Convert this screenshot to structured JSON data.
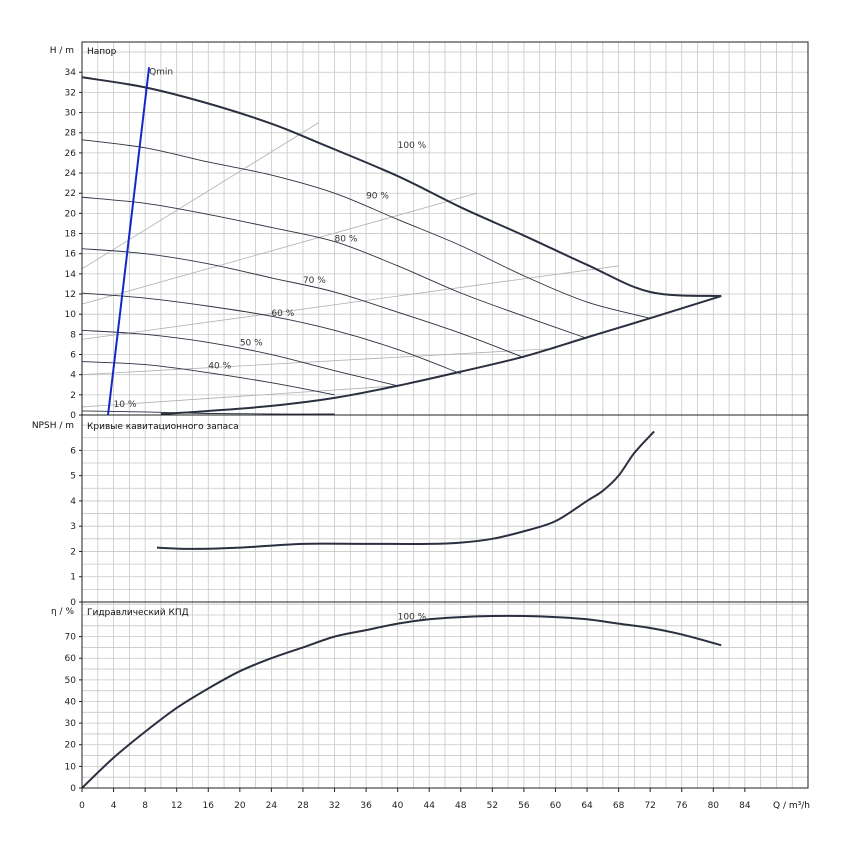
{
  "chart_data": [
    {
      "type": "line",
      "panel": "head",
      "title": "Напор",
      "ylabel": "H / m",
      "xlabel": "Q / m³/h",
      "xlim": [
        0,
        92
      ],
      "ylim": [
        0,
        37
      ],
      "grid": true,
      "x_ticks": [
        0,
        4,
        8,
        12,
        16,
        20,
        24,
        28,
        32,
        36,
        40,
        44,
        48,
        52,
        56,
        60,
        64,
        68,
        72,
        76,
        80,
        84
      ],
      "y_ticks": [
        0,
        2,
        4,
        6,
        8,
        10,
        12,
        14,
        16,
        18,
        20,
        22,
        24,
        26,
        28,
        30,
        32,
        34
      ],
      "series": [
        {
          "name": "100 %",
          "label_at": [
            40,
            26.5
          ],
          "x": [
            0,
            8,
            16,
            24,
            30,
            40,
            48,
            56,
            64,
            72,
            81
          ],
          "y": [
            33.5,
            32.5,
            30.9,
            28.9,
            27.0,
            23.7,
            20.6,
            17.8,
            14.9,
            12.2,
            11.8
          ]
        },
        {
          "name": "90 %",
          "label_at": [
            36,
            21.5
          ],
          "x": [
            0,
            8,
            16,
            24,
            32,
            40,
            48,
            56,
            64,
            72
          ],
          "y": [
            27.3,
            26.5,
            25.1,
            23.8,
            22.0,
            19.4,
            16.8,
            13.8,
            11.2,
            9.6
          ]
        },
        {
          "name": "80 %",
          "label_at": [
            32,
            17.2
          ],
          "x": [
            0,
            8,
            16,
            24,
            32,
            40,
            48,
            56,
            64
          ],
          "y": [
            21.6,
            21.0,
            19.9,
            18.6,
            17.2,
            14.8,
            12.1,
            9.8,
            7.6
          ]
        },
        {
          "name": "70 %",
          "label_at": [
            28,
            13.1
          ],
          "x": [
            0,
            8,
            16,
            24,
            32,
            40,
            48,
            56
          ],
          "y": [
            16.5,
            16.0,
            15.0,
            13.6,
            12.2,
            10.2,
            8.1,
            5.7
          ]
        },
        {
          "name": "60 %",
          "label_at": [
            24,
            9.8
          ],
          "x": [
            0,
            8,
            16,
            24,
            32,
            40,
            48
          ],
          "y": [
            12.1,
            11.6,
            10.8,
            9.8,
            8.4,
            6.5,
            4.1
          ]
        },
        {
          "name": "50 %",
          "label_at": [
            20,
            6.9
          ],
          "x": [
            0,
            8,
            16,
            24,
            32,
            40
          ],
          "y": [
            8.4,
            8.0,
            7.2,
            6.0,
            4.4,
            2.9
          ]
        },
        {
          "name": "40 %",
          "label_at": [
            16,
            4.6
          ],
          "x": [
            0,
            8,
            16,
            24,
            32
          ],
          "y": [
            5.3,
            5.0,
            4.2,
            3.2,
            2.0
          ]
        },
        {
          "name": "10 %",
          "label_at": [
            4,
            0.8
          ],
          "x": [
            0,
            8,
            16,
            24,
            32
          ],
          "y": [
            0.4,
            0.3,
            0.15,
            0.1,
            0.1
          ]
        },
        {
          "name": "Qmin",
          "label_at": [
            8.5,
            33.8
          ],
          "x": [
            3.3,
            8.5
          ],
          "y": [
            0,
            34.5
          ]
        },
        {
          "name": "",
          "x": [
            10,
            16,
            24,
            32,
            40,
            48,
            56,
            64,
            72,
            81
          ],
          "y": [
            0.1,
            0.4,
            0.9,
            1.7,
            2.9,
            4.3,
            5.8,
            7.7,
            9.6,
            11.8
          ]
        }
      ]
    },
    {
      "type": "line",
      "panel": "npsh",
      "title": "Кривые кавитационного запаса",
      "ylabel": "NPSH / m",
      "xlim": [
        0,
        92
      ],
      "ylim": [
        0,
        7.4
      ],
      "grid": true,
      "y_ticks": [
        0,
        1,
        2,
        3,
        4,
        5,
        6
      ],
      "series": [
        {
          "name": "",
          "x": [
            9.5,
            14,
            20,
            28,
            36,
            44,
            48,
            52,
            56,
            60,
            64,
            66,
            68,
            70,
            72.5
          ],
          "y": [
            2.15,
            2.1,
            2.15,
            2.3,
            2.3,
            2.3,
            2.35,
            2.5,
            2.8,
            3.2,
            4.0,
            4.4,
            5.0,
            5.9,
            6.75
          ]
        }
      ]
    },
    {
      "type": "line",
      "panel": "efficiency",
      "title": "Гидравлический КПД",
      "ylabel": "η / %",
      "xlim": [
        0,
        92
      ],
      "ylim": [
        0,
        86
      ],
      "grid": true,
      "y_ticks": [
        0,
        10,
        20,
        30,
        40,
        50,
        60,
        70
      ],
      "series": [
        {
          "name": "100 %",
          "label_at": [
            40,
            78
          ],
          "x": [
            0,
            4,
            8,
            12,
            16,
            20,
            24,
            28,
            32,
            36,
            40,
            44,
            48,
            52,
            56,
            60,
            64,
            68,
            72,
            76,
            81
          ],
          "y": [
            0,
            14,
            26,
            37,
            46,
            54,
            60,
            65,
            70,
            73,
            76,
            78,
            79,
            79.5,
            79.5,
            79,
            78,
            76,
            74,
            71,
            66
          ]
        }
      ]
    }
  ]
}
